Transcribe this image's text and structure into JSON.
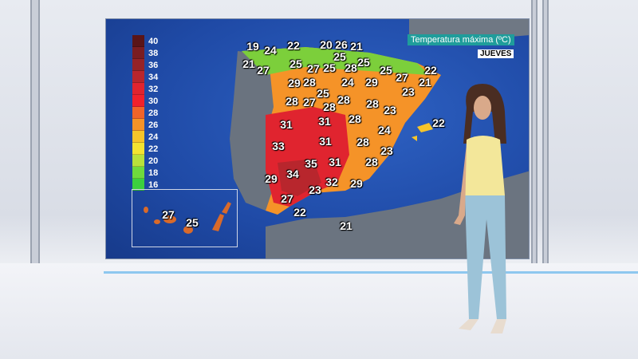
{
  "map": {
    "title": "Temperatura máxima (ºC)",
    "day": "JUEVES",
    "legend": {
      "labels": [
        "40",
        "38",
        "36",
        "34",
        "32",
        "30",
        "28",
        "26",
        "24",
        "22",
        "20",
        "18",
        "16"
      ],
      "colors": [
        "#5a1518",
        "#7a1d22",
        "#952328",
        "#b8262d",
        "#e0242f",
        "#f0212c",
        "#f0642a",
        "#f59328",
        "#f6c52a",
        "#f3e331",
        "#b8e03b",
        "#6fd93d",
        "#3ccf3f"
      ]
    },
    "temperatures": [
      "19",
      "24",
      "22",
      "20",
      "26",
      "21",
      "21",
      "27",
      "25",
      "27",
      "25",
      "28",
      "25",
      "25",
      "25",
      "27",
      "22",
      "21",
      "29",
      "28",
      "24",
      "29",
      "23",
      "25",
      "28",
      "27",
      "28",
      "28",
      "28",
      "23",
      "28",
      "31",
      "31",
      "24",
      "22",
      "33",
      "31",
      "28",
      "23",
      "35",
      "31",
      "28",
      "34",
      "29",
      "32",
      "29",
      "23",
      "27",
      "22",
      "21"
    ],
    "canarias_temperatures": [
      "27",
      "25"
    ]
  }
}
